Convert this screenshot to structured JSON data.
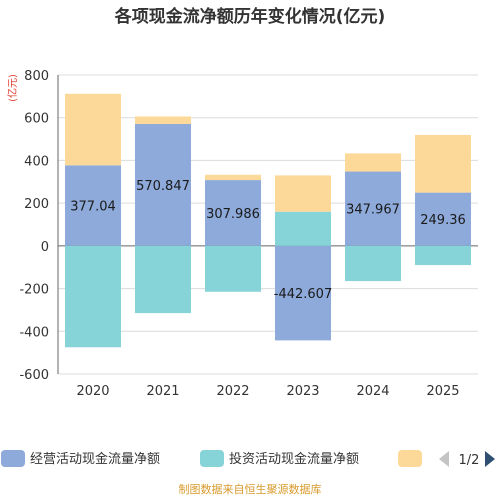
{
  "chart_data": {
    "type": "bar",
    "stacked": true,
    "title": "各项现金流净额历年变化情况(亿元)",
    "unit_label": "(亿元)",
    "categories": [
      "2020",
      "2021",
      "2022",
      "2023",
      "2024",
      "2025"
    ],
    "ylim": [
      -600,
      800
    ],
    "yticks": [
      "800",
      "600",
      "400",
      "200",
      "0",
      "-200",
      "-400",
      "-600"
    ],
    "ytick_values": [
      800,
      600,
      400,
      200,
      0,
      -200,
      -400,
      -600
    ],
    "grid": true,
    "legend_position": "bottom",
    "series": [
      {
        "name": "经营活动现金流量净额",
        "color": "#8eaadb",
        "values": [
          377.04,
          570.847,
          307.986,
          -442.607,
          347.967,
          249.36
        ],
        "labels": [
          "377.04",
          "570.847",
          "307.986",
          "-442.607",
          "347.967",
          "249.36"
        ]
      },
      {
        "name": "投资活动现金流量净额",
        "color": "#86d4d8",
        "values": [
          -475,
          -315,
          -215,
          160,
          -165,
          -90
        ]
      },
      {
        "name": "",
        "color": "#fdd999",
        "values": [
          335,
          35,
          25,
          170,
          85,
          270
        ]
      }
    ]
  },
  "legend": {
    "pager": "1/2",
    "prev_icon": "triangle-left-icon",
    "next_icon": "triangle-right-icon"
  },
  "source_text": "制图数据来自恒生聚源数据库"
}
